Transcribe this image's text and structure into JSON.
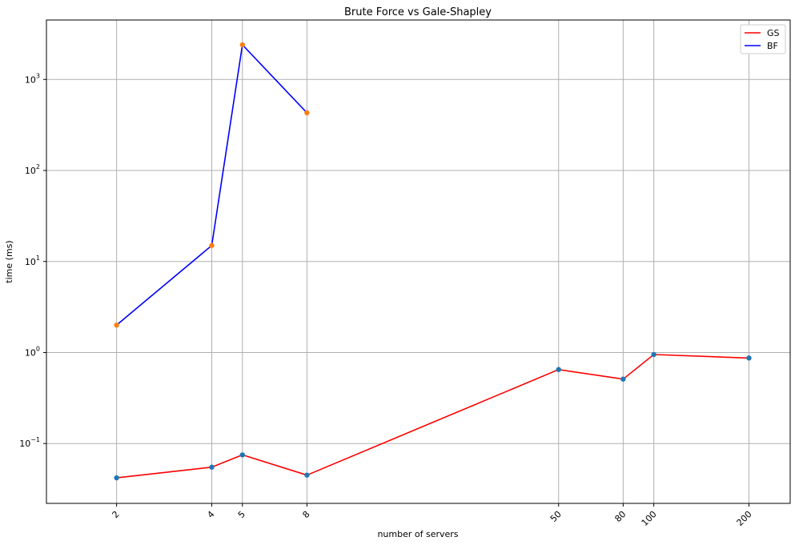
{
  "chart_data": {
    "type": "line",
    "title": "Brute Force vs Gale-Shapley",
    "xlabel": "number of servers",
    "ylabel": "time (ms)",
    "x_scale": "log",
    "y_scale": "log",
    "xlim": [
      1.2,
      270
    ],
    "ylim": [
      0.022,
      4500
    ],
    "x_ticks": [
      2,
      4,
      5,
      8,
      50,
      80,
      100,
      200
    ],
    "x_tick_labels": [
      "2",
      "4",
      "5",
      "8",
      "50",
      "80",
      "100",
      "200"
    ],
    "y_ticks": [
      0.1,
      1,
      10,
      100,
      1000
    ],
    "y_tick_labels": [
      {
        "base": "10",
        "exp": "−1"
      },
      {
        "base": "10",
        "exp": "0"
      },
      {
        "base": "10",
        "exp": "1"
      },
      {
        "base": "10",
        "exp": "2"
      },
      {
        "base": "10",
        "exp": "3"
      }
    ],
    "grid": true,
    "legend_position": "top-right",
    "series": [
      {
        "name": "GS",
        "color": "#ff0000",
        "marker_color": "#1f77b4",
        "x": [
          2,
          4,
          5,
          8,
          50,
          80,
          100,
          200
        ],
        "values": [
          0.042,
          0.055,
          0.075,
          0.045,
          0.65,
          0.51,
          0.95,
          0.87
        ]
      },
      {
        "name": "BF",
        "color": "#0000ff",
        "marker_color": "#ff7f0e",
        "x": [
          2,
          4,
          5,
          8
        ],
        "values": [
          2.0,
          15,
          2400,
          430
        ]
      }
    ]
  }
}
